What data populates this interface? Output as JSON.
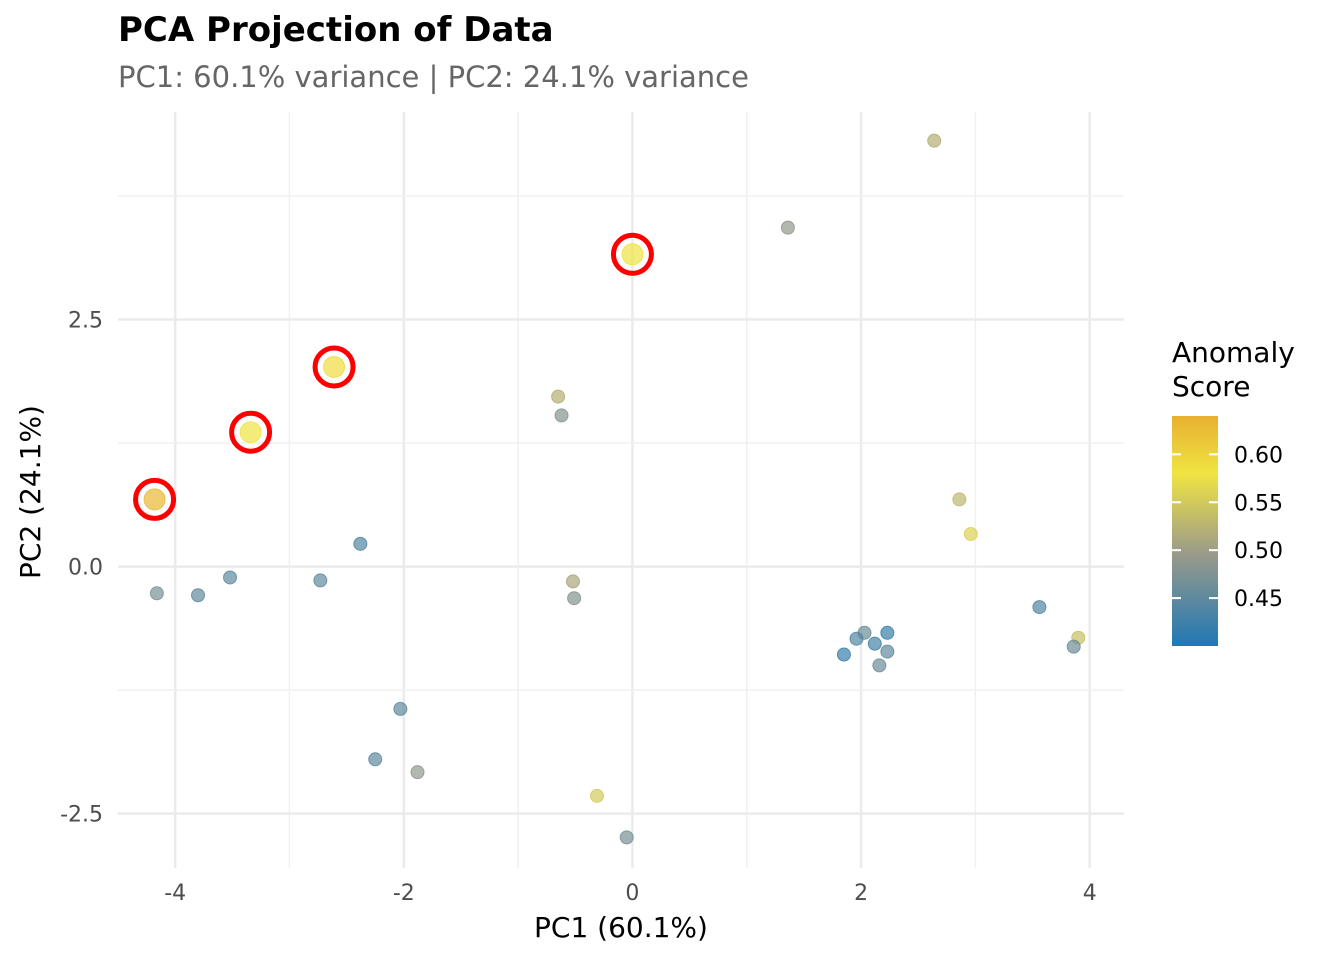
{
  "chart_data": {
    "type": "scatter",
    "title": "PCA Projection of Data",
    "subtitle": "PC1: 60.1% variance | PC2: 24.1% variance",
    "xlabel": "PC1 (60.1%)",
    "ylabel": "PC2 (24.1%)",
    "xlim": [
      -4.5,
      4.3
    ],
    "ylim": [
      -3.05,
      4.6
    ],
    "x_ticks": [
      -4,
      -2,
      0,
      2,
      4
    ],
    "x_tick_labels": [
      "-4",
      "-2",
      "0",
      "2",
      "4"
    ],
    "y_ticks": [
      -2.5,
      0.0,
      2.5
    ],
    "y_tick_labels": [
      "-2.5",
      "0.0",
      "2.5"
    ],
    "grid": true,
    "legend": {
      "title": "Anomaly Score",
      "title_lines": [
        "Anomaly",
        "Score"
      ],
      "placement": "right",
      "range": [
        0.4,
        0.64
      ],
      "ticks": [
        0.45,
        0.5,
        0.55,
        0.6
      ],
      "tick_labels": [
        "0.45",
        "0.50",
        "0.55",
        "0.60"
      ],
      "colors": {
        "low": "#1f78b4",
        "mid": "#9a9a8a",
        "high": "#f0e442",
        "top": "#e8b030"
      }
    },
    "highlight_color": "#ff0000",
    "points": [
      {
        "x": -4.18,
        "y": 0.68,
        "score": 0.63,
        "anomaly": true
      },
      {
        "x": -3.34,
        "y": 1.36,
        "score": 0.58,
        "anomaly": true
      },
      {
        "x": -2.61,
        "y": 2.02,
        "score": 0.59,
        "anomaly": true
      },
      {
        "x": 0.0,
        "y": 3.16,
        "score": 0.58,
        "anomaly": true
      },
      {
        "x": 2.64,
        "y": 4.31,
        "score": 0.52,
        "anomaly": false
      },
      {
        "x": 1.36,
        "y": 3.43,
        "score": 0.49,
        "anomaly": false
      },
      {
        "x": -0.65,
        "y": 1.72,
        "score": 0.52,
        "anomaly": false
      },
      {
        "x": -0.62,
        "y": 1.53,
        "score": 0.48,
        "anomaly": false
      },
      {
        "x": 2.86,
        "y": 0.68,
        "score": 0.53,
        "anomaly": false
      },
      {
        "x": 2.96,
        "y": 0.33,
        "score": 0.56,
        "anomaly": false
      },
      {
        "x": -2.38,
        "y": 0.23,
        "score": 0.44,
        "anomaly": false
      },
      {
        "x": -4.16,
        "y": -0.27,
        "score": 0.47,
        "anomaly": false
      },
      {
        "x": -3.8,
        "y": -0.29,
        "score": 0.45,
        "anomaly": false
      },
      {
        "x": -3.52,
        "y": -0.11,
        "score": 0.45,
        "anomaly": false
      },
      {
        "x": -2.73,
        "y": -0.14,
        "score": 0.45,
        "anomaly": false
      },
      {
        "x": -0.52,
        "y": -0.15,
        "score": 0.51,
        "anomaly": false
      },
      {
        "x": -0.51,
        "y": -0.32,
        "score": 0.48,
        "anomaly": false
      },
      {
        "x": 3.56,
        "y": -0.41,
        "score": 0.44,
        "anomaly": false
      },
      {
        "x": 3.9,
        "y": -0.72,
        "score": 0.54,
        "anomaly": false
      },
      {
        "x": 3.86,
        "y": -0.81,
        "score": 0.46,
        "anomaly": false
      },
      {
        "x": 2.23,
        "y": -0.67,
        "score": 0.42,
        "anomaly": false
      },
      {
        "x": 2.03,
        "y": -0.67,
        "score": 0.46,
        "anomaly": false
      },
      {
        "x": 1.96,
        "y": -0.73,
        "score": 0.44,
        "anomaly": false
      },
      {
        "x": 2.12,
        "y": -0.78,
        "score": 0.43,
        "anomaly": false
      },
      {
        "x": 2.23,
        "y": -0.86,
        "score": 0.45,
        "anomaly": false
      },
      {
        "x": 1.85,
        "y": -0.89,
        "score": 0.42,
        "anomaly": false
      },
      {
        "x": 2.16,
        "y": -1.0,
        "score": 0.46,
        "anomaly": false
      },
      {
        "x": -2.03,
        "y": -1.44,
        "score": 0.45,
        "anomaly": false
      },
      {
        "x": -2.25,
        "y": -1.95,
        "score": 0.45,
        "anomaly": false
      },
      {
        "x": -1.88,
        "y": -2.08,
        "score": 0.49,
        "anomaly": false
      },
      {
        "x": -0.31,
        "y": -2.32,
        "score": 0.55,
        "anomaly": false
      },
      {
        "x": -0.05,
        "y": -2.74,
        "score": 0.47,
        "anomaly": false
      }
    ]
  }
}
